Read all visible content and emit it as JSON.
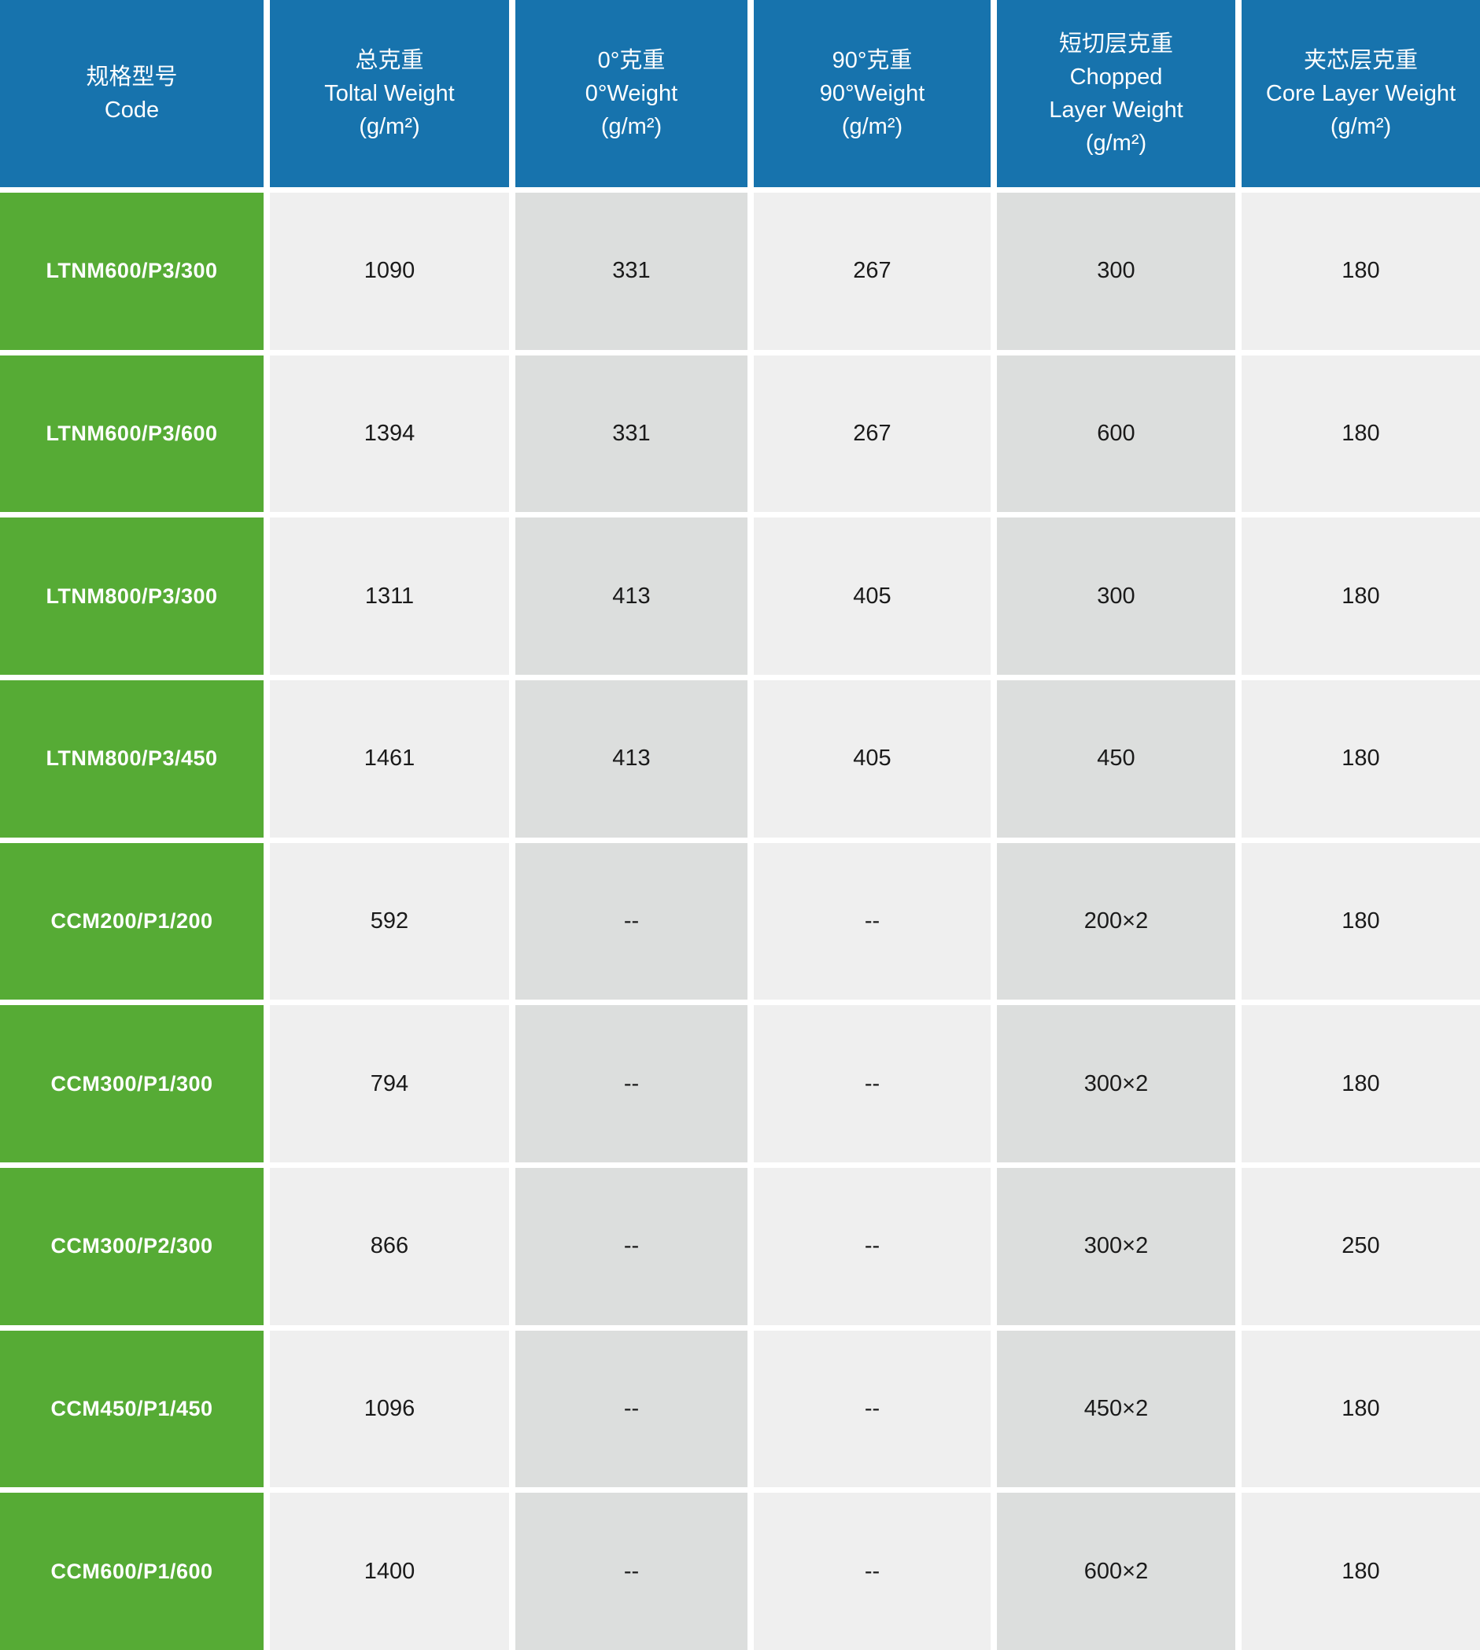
{
  "chart_data": {
    "type": "table",
    "columns": [
      "规格型号 Code",
      "总克重 Toltal Weight (g/m²)",
      "0°克重 0°Weight (g/m²)",
      "90°克重 90°Weight (g/m²)",
      "短切层克重 Chopped Layer Weight (g/m²)",
      "夹芯层克重 Core Layer Weight (g/m²)"
    ],
    "rows": [
      [
        "LTNM600/P3/300",
        "1090",
        "331",
        "267",
        "300",
        "180"
      ],
      [
        "LTNM600/P3/600",
        "1394",
        "331",
        "267",
        "600",
        "180"
      ],
      [
        "LTNM800/P3/300",
        "1311",
        "413",
        "405",
        "300",
        "180"
      ],
      [
        "LTNM800/P3/450",
        "1461",
        "413",
        "405",
        "450",
        "180"
      ],
      [
        "CCM200/P1/200",
        "592",
        "--",
        "--",
        "200×2",
        "180"
      ],
      [
        "CCM300/P1/300",
        "794",
        "--",
        "--",
        "300×2",
        "180"
      ],
      [
        "CCM300/P2/300",
        "866",
        "--",
        "--",
        "300×2",
        "250"
      ],
      [
        "CCM450/P1/450",
        "1096",
        "--",
        "--",
        "450×2",
        "180"
      ],
      [
        "CCM600/P1/600",
        "1400",
        "--",
        "--",
        "600×2",
        "180"
      ]
    ]
  },
  "header": {
    "columns": [
      {
        "zh": "规格型号",
        "en": "Code",
        "unit": ""
      },
      {
        "zh": "总克重",
        "en": "Toltal Weight",
        "unit": "(g/m²)"
      },
      {
        "zh": "0°克重",
        "en": "0°Weight",
        "unit": "(g/m²)"
      },
      {
        "zh": "90°克重",
        "en": "90°Weight",
        "unit": "(g/m²)"
      },
      {
        "zh": "短切层克重",
        "en": "Chopped Layer Weight",
        "unit": "(g/m²)"
      },
      {
        "zh": "夹芯层克重",
        "en": "Core Layer Weight",
        "unit": "(g/m²)"
      }
    ]
  },
  "rows": [
    {
      "code": "LTNM600/P3/300",
      "total_weight": "1090",
      "weight_0": "331",
      "weight_90": "267",
      "chopped_layer_weight": "300",
      "core_layer_weight": "180"
    },
    {
      "code": "LTNM600/P3/600",
      "total_weight": "1394",
      "weight_0": "331",
      "weight_90": "267",
      "chopped_layer_weight": "600",
      "core_layer_weight": "180"
    },
    {
      "code": "LTNM800/P3/300",
      "total_weight": "1311",
      "weight_0": "413",
      "weight_90": "405",
      "chopped_layer_weight": "300",
      "core_layer_weight": "180"
    },
    {
      "code": "LTNM800/P3/450",
      "total_weight": "1461",
      "weight_0": "413",
      "weight_90": "405",
      "chopped_layer_weight": "450",
      "core_layer_weight": "180"
    },
    {
      "code": "CCM200/P1/200",
      "total_weight": "592",
      "weight_0": "--",
      "weight_90": "--",
      "chopped_layer_weight": "200×2",
      "core_layer_weight": "180"
    },
    {
      "code": "CCM300/P1/300",
      "total_weight": "794",
      "weight_0": "--",
      "weight_90": "--",
      "chopped_layer_weight": "300×2",
      "core_layer_weight": "180"
    },
    {
      "code": "CCM300/P2/300",
      "total_weight": "866",
      "weight_0": "--",
      "weight_90": "--",
      "chopped_layer_weight": "300×2",
      "core_layer_weight": "250"
    },
    {
      "code": "CCM450/P1/450",
      "total_weight": "1096",
      "weight_0": "--",
      "weight_90": "--",
      "chopped_layer_weight": "450×2",
      "core_layer_weight": "180"
    },
    {
      "code": "CCM600/P1/600",
      "total_weight": "1400",
      "weight_0": "--",
      "weight_90": "--",
      "chopped_layer_weight": "600×2",
      "core_layer_weight": "180"
    }
  ],
  "colors": {
    "header_bg": "#1773ad",
    "code_cell_bg": "#56ab35",
    "cell_light_bg": "#efefef",
    "cell_dark_bg": "#dcdedd",
    "grid_gap": "#ffffff",
    "header_text": "#ffffff",
    "data_text": "#1a1a1a"
  }
}
